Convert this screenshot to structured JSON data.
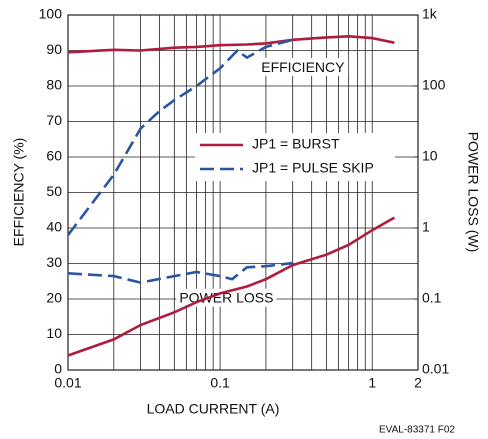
{
  "chart_data": {
    "type": "line",
    "xlabel": "LOAD CURRENT (A)",
    "ylabel": "EFFICIENCY (%)",
    "y2label": "POWER LOSS (W)",
    "footer": "EVAL-83371 F02",
    "annotations": [
      {
        "text": "EFFICIENCY",
        "x": 0.35,
        "y": 85
      },
      {
        "text": "POWER LOSS",
        "x": 0.11,
        "y": 20
      }
    ],
    "xscale": "log",
    "xlim": [
      0.01,
      2
    ],
    "xticks": [
      0.01,
      0.1,
      1,
      2
    ],
    "xminorticks": [
      0.02,
      0.03,
      0.04,
      0.05,
      0.06,
      0.07,
      0.08,
      0.09,
      0.2,
      0.3,
      0.4,
      0.5,
      0.6,
      0.7,
      0.8,
      0.9
    ],
    "ylim": [
      0,
      100
    ],
    "yticks": [
      0,
      10,
      20,
      30,
      40,
      50,
      60,
      70,
      80,
      90,
      100
    ],
    "y2scale": "log",
    "y2lim": [
      0.01,
      1000
    ],
    "y2ticks": [
      0.01,
      0.1,
      1,
      10,
      100,
      {
        "value": 1000,
        "label": "1k"
      }
    ],
    "grid": true,
    "series": [
      {
        "name": "JP1 = BURST",
        "color": "#b01c3c",
        "style": "solid",
        "x": [
          0.01,
          0.02,
          0.03,
          0.05,
          0.07,
          0.1,
          0.15,
          0.2,
          0.3,
          0.5,
          0.7,
          1,
          1.4
        ],
        "values": [
          89.5,
          90.2,
          90,
          90.8,
          91,
          91.5,
          91.7,
          92,
          93,
          93.7,
          94,
          93.5,
          92.2
        ]
      },
      {
        "name": "JP1 = PULSE SKIP",
        "color": "#2a55a0",
        "style": "dashed",
        "x": [
          0.01,
          0.02,
          0.03,
          0.04,
          0.05,
          0.07,
          0.1,
          0.13,
          0.15,
          0.2,
          0.3
        ],
        "values": [
          38,
          55,
          68,
          73,
          76,
          80,
          85,
          90,
          88,
          91,
          93
        ]
      },
      {
        "color": "#b01c3c",
        "style": "solid",
        "axis": "y2",
        "x": [
          0.01,
          0.02,
          0.03,
          0.05,
          0.07,
          0.1,
          0.15,
          0.2,
          0.3,
          0.5,
          0.7,
          1,
          1.4
        ],
        "values": [
          0.016,
          0.027,
          0.043,
          0.065,
          0.09,
          0.12,
          0.15,
          0.19,
          0.3,
          0.42,
          0.58,
          0.93,
          1.4
        ]
      },
      {
        "color": "#2a55a0",
        "style": "dashed",
        "axis": "y2",
        "x": [
          0.01,
          0.02,
          0.03,
          0.05,
          0.07,
          0.1,
          0.12,
          0.15,
          0.2,
          0.3
        ],
        "values": [
          0.23,
          0.21,
          0.17,
          0.21,
          0.24,
          0.21,
          0.19,
          0.28,
          0.29,
          0.32
        ]
      }
    ]
  }
}
